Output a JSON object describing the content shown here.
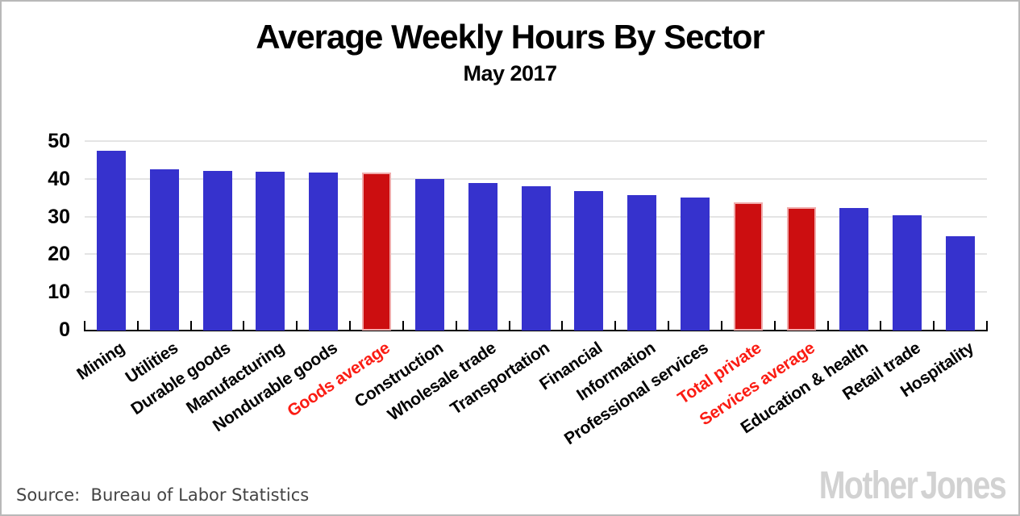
{
  "header": {
    "title": "Average Weekly Hours By Sector",
    "subtitle": "May 2017"
  },
  "footer": {
    "source": "Source:  Bureau of Labor Statistics",
    "brand": "Mother Jones"
  },
  "chart_data": {
    "type": "bar",
    "title": "Average Weekly Hours By Sector",
    "subtitle": "May 2017",
    "categories": [
      "Mining",
      "Utilities",
      "Durable goods",
      "Manufacturing",
      "Nondurable goods",
      "Goods average",
      "Construction",
      "Wholesale trade",
      "Transportation",
      "Financial",
      "Information",
      "Professional services",
      "Total private",
      "Services average",
      "Education & health",
      "Retail trade",
      "Hospitality"
    ],
    "values": [
      47.6,
      42.8,
      42.4,
      42.1,
      41.9,
      41.8,
      40.1,
      39.0,
      38.3,
      37.0,
      35.8,
      35.3,
      34.0,
      32.7,
      32.4,
      30.5,
      25.0
    ],
    "highlighted_categories": [
      "Goods average",
      "Total private",
      "Services average"
    ],
    "xlabel": "",
    "ylabel": "",
    "ylim": [
      0,
      50
    ],
    "yticks": [
      0,
      10,
      20,
      30,
      40,
      50
    ],
    "grid": true,
    "legend": "none",
    "colors": {
      "bar": "#3632cd",
      "highlight_bar": "#cc0e10",
      "highlight_bar_border": "#f0abab",
      "highlight_label": "#fb1c13",
      "label": "#000000",
      "gridline": "#e4e4e4",
      "axis": "#000000"
    }
  }
}
